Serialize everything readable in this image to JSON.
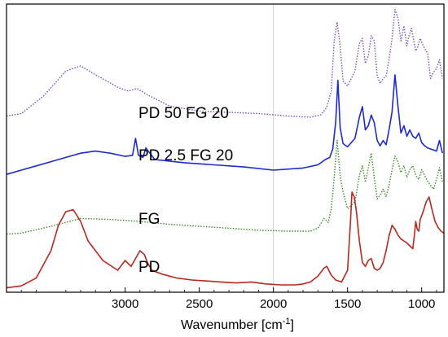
{
  "chart_data": {
    "type": "line",
    "xlabel": "Wavenumber [cm",
    "xlabel_sup": "-1",
    "xlabel_suffix": "]",
    "ylabel": "",
    "xlim": [
      3800,
      850
    ],
    "x_reversed": true,
    "grid": false,
    "legend": "inline labels next to curves",
    "x_ticks": [
      {
        "value": 3000,
        "label": "3000"
      },
      {
        "value": 2500,
        "label": "2500"
      },
      {
        "value": 2000,
        "label": "2000"
      },
      {
        "value": 1500,
        "label": "1500"
      },
      {
        "value": 1000,
        "label": "1000"
      }
    ],
    "series": [
      {
        "name": "PD 50 FG 20",
        "color": "#7b4fc0",
        "style": "dotted",
        "x": [
          3800,
          3700,
          3550,
          3400,
          3300,
          3200,
          3050,
          2980,
          2920,
          2850,
          2700,
          2500,
          2300,
          2100,
          1900,
          1750,
          1680,
          1640,
          1610,
          1590,
          1570,
          1550,
          1530,
          1500,
          1450,
          1420,
          1400,
          1380,
          1360,
          1340,
          1320,
          1300,
          1280,
          1260,
          1240,
          1220,
          1200,
          1180,
          1160,
          1140,
          1120,
          1100,
          1090,
          1070,
          1050,
          1040,
          1030,
          1010,
          990,
          960,
          940,
          920,
          900,
          880,
          860
        ],
        "y": [
          0.1,
          0.12,
          0.26,
          0.46,
          0.5,
          0.43,
          0.33,
          0.3,
          0.32,
          0.27,
          0.18,
          0.14,
          0.13,
          0.12,
          0.1,
          0.09,
          0.11,
          0.17,
          0.3,
          0.7,
          0.85,
          0.66,
          0.38,
          0.34,
          0.46,
          0.68,
          0.72,
          0.52,
          0.58,
          0.74,
          0.7,
          0.42,
          0.36,
          0.4,
          0.42,
          0.55,
          0.72,
          0.95,
          0.88,
          0.7,
          0.82,
          0.66,
          0.72,
          0.8,
          0.68,
          0.62,
          0.64,
          0.72,
          0.66,
          0.6,
          0.4,
          0.45,
          0.48,
          0.55,
          0.4
        ]
      },
      {
        "name": "PD 2.5 FG 20",
        "color": "#1c2ad0",
        "style": "solid",
        "x": [
          3800,
          3700,
          3600,
          3500,
          3400,
          3300,
          3200,
          3100,
          3000,
          2950,
          2930,
          2910,
          2880,
          2860,
          2800,
          2600,
          2400,
          2200,
          2000,
          1800,
          1700,
          1650,
          1620,
          1600,
          1580,
          1565,
          1550,
          1530,
          1500,
          1450,
          1420,
          1400,
          1380,
          1360,
          1340,
          1320,
          1300,
          1280,
          1260,
          1240,
          1220,
          1200,
          1180,
          1160,
          1140,
          1120,
          1100,
          1080,
          1060,
          1040,
          1020,
          1000,
          980,
          960,
          940,
          920,
          900,
          880,
          860
        ],
        "y": [
          0.06,
          0.1,
          0.14,
          0.18,
          0.22,
          0.26,
          0.28,
          0.26,
          0.23,
          0.24,
          0.4,
          0.24,
          0.22,
          0.31,
          0.2,
          0.17,
          0.15,
          0.13,
          0.1,
          0.12,
          0.15,
          0.2,
          0.22,
          0.3,
          0.55,
          0.95,
          0.5,
          0.35,
          0.32,
          0.4,
          0.6,
          0.7,
          0.48,
          0.52,
          0.62,
          0.55,
          0.38,
          0.33,
          0.38,
          0.34,
          0.48,
          0.65,
          1.0,
          0.7,
          0.45,
          0.52,
          0.42,
          0.48,
          0.42,
          0.4,
          0.45,
          0.36,
          0.33,
          0.31,
          0.3,
          0.29,
          0.28,
          0.38,
          0.26
        ]
      },
      {
        "name": "FG",
        "color": "#3d8a2c",
        "style": "dotted",
        "x": [
          3800,
          3700,
          3500,
          3300,
          3100,
          2900,
          2700,
          2500,
          2300,
          2100,
          1900,
          1750,
          1700,
          1660,
          1630,
          1610,
          1590,
          1570,
          1550,
          1530,
          1500,
          1450,
          1420,
          1400,
          1380,
          1360,
          1340,
          1320,
          1300,
          1280,
          1260,
          1240,
          1220,
          1200,
          1180,
          1160,
          1140,
          1120,
          1100,
          1080,
          1060,
          1040,
          1020,
          1000,
          980,
          960,
          940,
          920,
          900,
          880,
          860
        ],
        "y": [
          0.02,
          0.03,
          0.1,
          0.18,
          0.17,
          0.15,
          0.12,
          0.1,
          0.08,
          0.06,
          0.05,
          0.05,
          0.08,
          0.18,
          0.14,
          0.28,
          0.6,
          0.98,
          0.62,
          0.45,
          0.28,
          0.35,
          0.62,
          0.72,
          0.55,
          0.7,
          0.85,
          0.6,
          0.38,
          0.42,
          0.48,
          0.4,
          0.52,
          0.68,
          0.82,
          0.76,
          0.65,
          0.72,
          0.6,
          0.68,
          0.72,
          0.62,
          0.58,
          0.68,
          0.62,
          0.56,
          0.52,
          0.48,
          0.58,
          0.7,
          0.55
        ]
      },
      {
        "name": "PD",
        "color": "#b8281f",
        "style": "solid",
        "x": [
          3800,
          3700,
          3600,
          3500,
          3450,
          3400,
          3350,
          3300,
          3250,
          3150,
          3050,
          3000,
          2960,
          2930,
          2900,
          2870,
          2850,
          2820,
          2750,
          2650,
          2550,
          2450,
          2350,
          2250,
          2150,
          2050,
          1950,
          1850,
          1800,
          1750,
          1700,
          1660,
          1640,
          1610,
          1580,
          1540,
          1500,
          1480,
          1470,
          1455,
          1440,
          1420,
          1400,
          1380,
          1360,
          1340,
          1320,
          1300,
          1280,
          1260,
          1240,
          1220,
          1200,
          1180,
          1160,
          1140,
          1120,
          1100,
          1080,
          1060,
          1050,
          1040,
          1030,
          1020,
          1010,
          990,
          970,
          950,
          930,
          910,
          890,
          870,
          850
        ],
        "y": [
          0.02,
          0.04,
          0.12,
          0.4,
          0.66,
          0.8,
          0.82,
          0.7,
          0.5,
          0.3,
          0.2,
          0.3,
          0.24,
          0.32,
          0.4,
          0.36,
          0.28,
          0.2,
          0.16,
          0.12,
          0.1,
          0.09,
          0.08,
          0.07,
          0.08,
          0.06,
          0.05,
          0.05,
          0.06,
          0.08,
          0.14,
          0.22,
          0.24,
          0.15,
          0.1,
          0.08,
          0.2,
          0.7,
          1.0,
          0.95,
          0.8,
          0.5,
          0.28,
          0.24,
          0.3,
          0.32,
          0.22,
          0.2,
          0.22,
          0.28,
          0.4,
          0.55,
          0.66,
          0.62,
          0.56,
          0.52,
          0.5,
          0.48,
          0.45,
          0.42,
          0.55,
          0.7,
          0.62,
          0.6,
          0.72,
          0.8,
          0.9,
          0.95,
          0.82,
          0.7,
          0.64,
          0.6,
          0.58
        ]
      }
    ]
  }
}
